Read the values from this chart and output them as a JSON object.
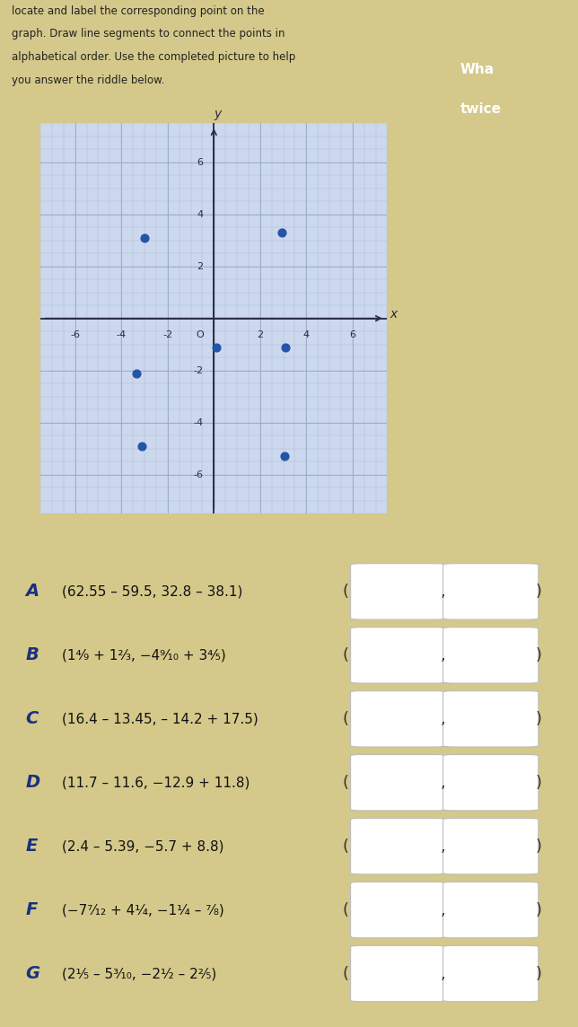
{
  "title_lines": [
    "locate and label the corresponding point on the",
    "graph. Draw line segments to connect the points in",
    "alphabetical order. Use the completed picture to help",
    "you answer the riddle below."
  ],
  "bg_color": "#d4c98a",
  "graph_bg": "#ccd8ee",
  "grid_color": "#b0bcd4",
  "grid_major_color": "#9aaac8",
  "axis_color": "#2a2a4a",
  "point_color": "#2255aa",
  "point_size": 40,
  "points": {
    "A": [
      3.05,
      -5.3
    ],
    "B": [
      3.11,
      -1.1
    ],
    "C": [
      2.95,
      3.3
    ],
    "D": [
      0.1,
      -1.1
    ],
    "E": [
      -2.99,
      3.1
    ],
    "F": [
      -3.33,
      -2.125
    ],
    "G": [
      -3.1,
      -4.9
    ]
  },
  "xlim": [
    -7.5,
    7.5
  ],
  "ylim": [
    -7.5,
    7.5
  ],
  "xticks": [
    -6,
    -4,
    -2,
    2,
    4,
    6
  ],
  "yticks": [
    -6,
    -4,
    -2,
    2,
    4,
    6
  ],
  "xlabel": "x",
  "ylabel": "y",
  "problem_labels": [
    {
      "label": "A",
      "expr": "(62.55 – 59.5, 32.8 – 38.1)"
    },
    {
      "label": "B",
      "expr": "(1⁴⁄₉ + 1²⁄₃, −4⁹⁄₁₀ + 3⁴⁄₅)"
    },
    {
      "label": "C",
      "expr": "(16.4 – 13.45, – 14.2 + 17.5)"
    },
    {
      "label": "D",
      "expr": "(11.7 – 11.6, −12.9 + 11.8)"
    },
    {
      "label": "E",
      "expr": "(2.4 – 5.39, −5.7 + 8.8)"
    },
    {
      "label": "F",
      "expr": "(−7⁷⁄₁₂ + 4¹⁄₄, −1¹⁄₄ – ⁷⁄₈)"
    },
    {
      "label": "G",
      "expr": "(2¹⁄₅ – 5³⁄₁₀, −2¹⁄₂ – 2²⁄₅)"
    }
  ],
  "right_box_color": "#c0392b",
  "right_box_text1": "Wha",
  "right_box_text2": "twice",
  "answer_box_color": "#ffffff",
  "tick_fontsize": 8,
  "axis_label_fontsize": 10,
  "problem_label_fontsize": 14,
  "problem_text_fontsize": 11,
  "instr_fontsize": 8.5
}
